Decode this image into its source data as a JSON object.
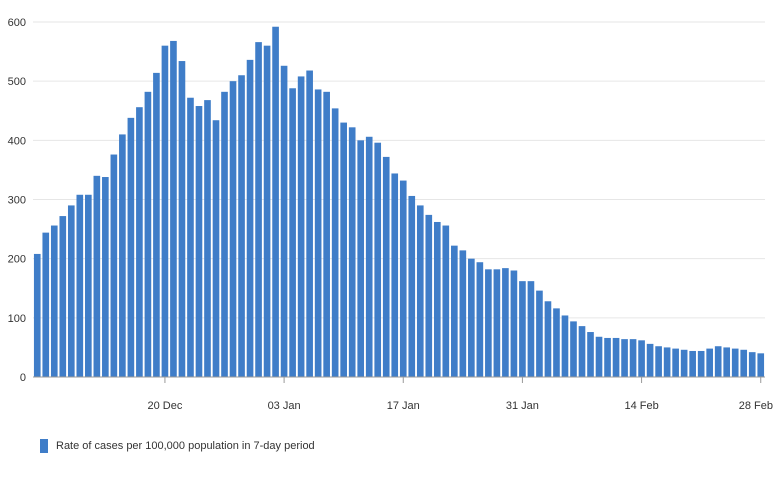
{
  "colors": {
    "bar": "#3f7dc8",
    "grid": "#e6e6e6",
    "axis": "#999999",
    "text": "#333333"
  },
  "chart_data": {
    "type": "bar",
    "title": "",
    "xlabel": "",
    "ylabel": "",
    "ylim": [
      0,
      600
    ],
    "yticks": [
      0,
      100,
      200,
      300,
      400,
      500,
      600
    ],
    "grid": true,
    "legend_position": "bottom-left",
    "categories": [
      "05 Dec",
      "06 Dec",
      "07 Dec",
      "08 Dec",
      "09 Dec",
      "10 Dec",
      "11 Dec",
      "12 Dec",
      "13 Dec",
      "14 Dec",
      "15 Dec",
      "16 Dec",
      "17 Dec",
      "18 Dec",
      "19 Dec",
      "20 Dec",
      "21 Dec",
      "22 Dec",
      "23 Dec",
      "24 Dec",
      "25 Dec",
      "26 Dec",
      "27 Dec",
      "28 Dec",
      "29 Dec",
      "30 Dec",
      "31 Dec",
      "01 Jan",
      "02 Jan",
      "03 Jan",
      "04 Jan",
      "05 Jan",
      "06 Jan",
      "07 Jan",
      "08 Jan",
      "09 Jan",
      "10 Jan",
      "11 Jan",
      "12 Jan",
      "13 Jan",
      "14 Jan",
      "15 Jan",
      "16 Jan",
      "17 Jan",
      "18 Jan",
      "19 Jan",
      "20 Jan",
      "21 Jan",
      "22 Jan",
      "23 Jan",
      "24 Jan",
      "25 Jan",
      "26 Jan",
      "27 Jan",
      "28 Jan",
      "29 Jan",
      "30 Jan",
      "31 Jan",
      "01 Feb",
      "02 Feb",
      "03 Feb",
      "04 Feb",
      "05 Feb",
      "06 Feb",
      "07 Feb",
      "08 Feb",
      "09 Feb",
      "10 Feb",
      "11 Feb",
      "12 Feb",
      "13 Feb",
      "14 Feb",
      "15 Feb",
      "16 Feb",
      "17 Feb",
      "18 Feb",
      "19 Feb",
      "20 Feb",
      "21 Feb",
      "22 Feb",
      "23 Feb",
      "24 Feb",
      "25 Feb",
      "26 Feb",
      "27 Feb",
      "28 Feb"
    ],
    "xtick_labels": [
      {
        "index": 15,
        "label": "20 Dec"
      },
      {
        "index": 29,
        "label": "03 Jan"
      },
      {
        "index": 43,
        "label": "17 Jan"
      },
      {
        "index": 57,
        "label": "31 Jan"
      },
      {
        "index": 71,
        "label": "14 Feb"
      },
      {
        "index": 85,
        "label": "28 Feb"
      }
    ],
    "series": [
      {
        "name": "Rate of cases per 100,000 population in 7-day period",
        "values": [
          208,
          244,
          256,
          272,
          290,
          308,
          308,
          340,
          338,
          376,
          410,
          438,
          456,
          482,
          514,
          560,
          568,
          534,
          472,
          458,
          468,
          434,
          482,
          500,
          510,
          536,
          566,
          560,
          592,
          526,
          488,
          508,
          518,
          486,
          482,
          454,
          430,
          422,
          400,
          406,
          396,
          372,
          344,
          332,
          306,
          290,
          274,
          262,
          256,
          222,
          214,
          200,
          194,
          182,
          182,
          184,
          180,
          162,
          162,
          146,
          128,
          116,
          104,
          94,
          86,
          76,
          68,
          66,
          66,
          64,
          64,
          62,
          56,
          52,
          50,
          48,
          46,
          44,
          44,
          48,
          52,
          50,
          48,
          46,
          42,
          40
        ]
      }
    ]
  }
}
